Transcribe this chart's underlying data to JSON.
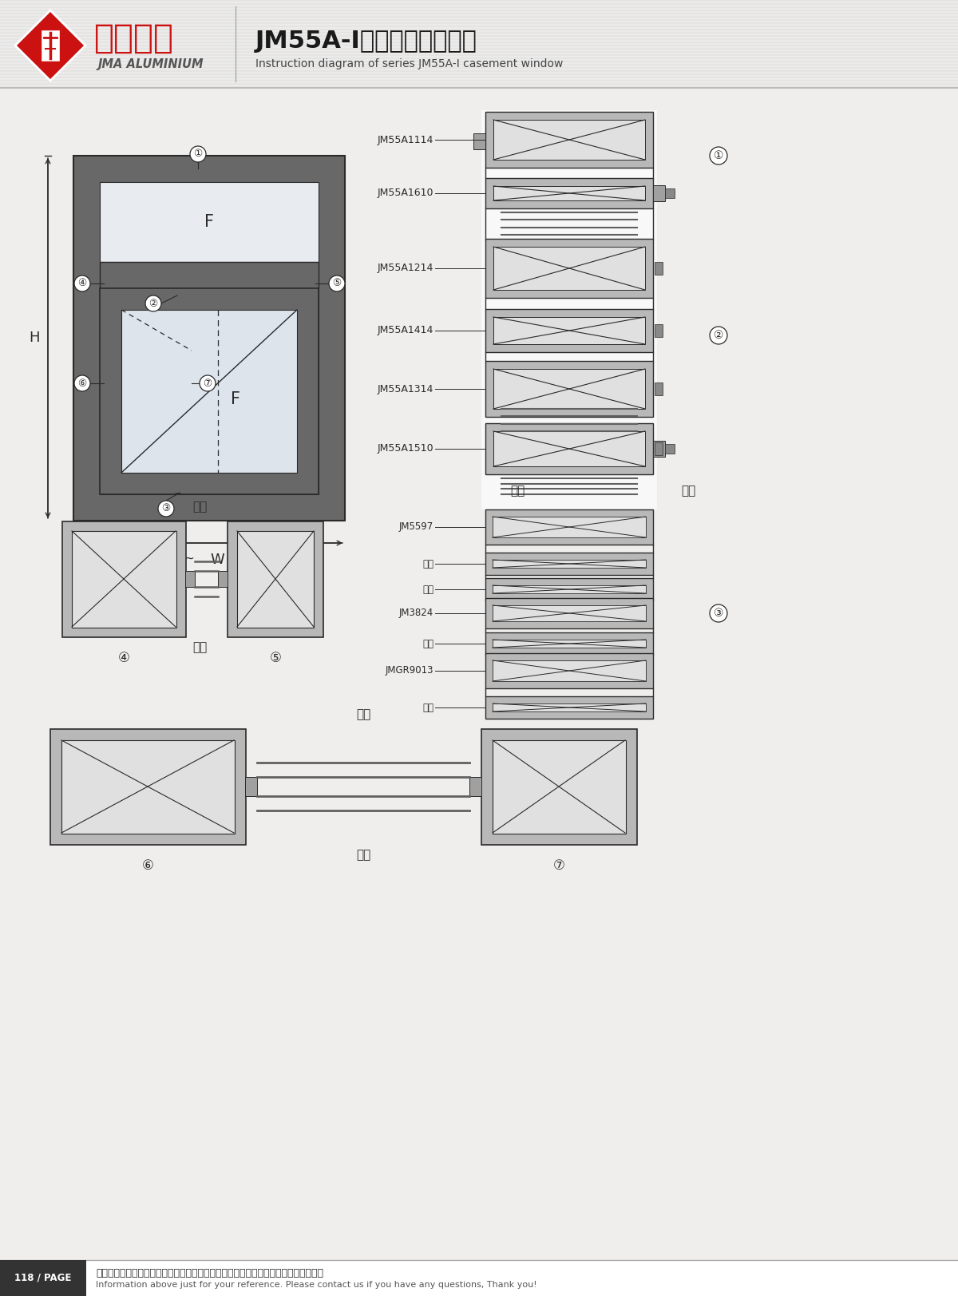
{
  "title_cn": "JM55A-I系列平开窗结构图",
  "title_en": "Instruction diagram of series JM55A-I casement window",
  "company_cn": "坚美铝业",
  "company_en": "JMA ALUMINIUM",
  "footer_cn": "图中所示型材截面、装配、编号、尺寸及重量仅供参考。如有疑问，请向本公司和询。",
  "footer_en": "Information above just for your reference. Please contact us if you have any questions, Thank you!",
  "page_num": "118 / PAGE",
  "indoor": "室内",
  "outdoor": "室外",
  "labels": {
    "JM55A1114": "JM55A1114",
    "JM55A1610": "JM55A1610",
    "JM55A1214": "JM55A1214",
    "JM55A1414": "JM55A1414",
    "JM55A1314": "JM55A1314",
    "JM55A1510": "JM55A1510",
    "JM5597": "JM5597",
    "jiaoM1": "角码",
    "chuang_cheng": "窗撑",
    "JM3824": "JM3824",
    "jiaoM2": "角码",
    "JMGR9013": "JMGR9013",
    "jiaoM3": "角码"
  },
  "bg": "#f0eeec",
  "header_lines_color": "#cccccc",
  "black": "#1a1a1a",
  "dark": "#2a2a2a",
  "frame_gray": "#686868",
  "light_gray": "#c8c8c8",
  "red": "#cc1111",
  "white": "#ffffff"
}
